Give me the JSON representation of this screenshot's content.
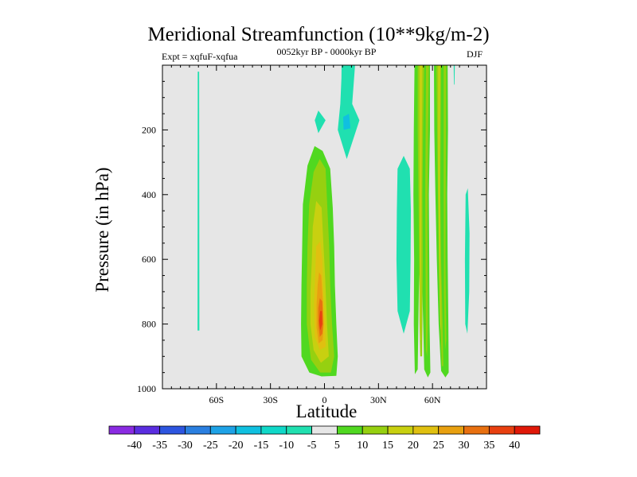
{
  "chart_data": {
    "type": "filled-contour",
    "title": "Meridional Streamfunction (10**9kg/m-2)",
    "experiment_label": "Expt = xqfuF-xqfua",
    "subtitle": "0052kyr BP - 0000kyr BP",
    "season": "DJF",
    "xlabel": "Latitude",
    "ylabel": "Pressure (in hPa)",
    "xlim": [
      -90,
      90
    ],
    "ylim": [
      1000,
      0
    ],
    "xticks": [
      {
        "value": -60,
        "label": "60S"
      },
      {
        "value": -30,
        "label": "30S"
      },
      {
        "value": 0,
        "label": "0"
      },
      {
        "value": 30,
        "label": "30N"
      },
      {
        "value": 60,
        "label": "60N"
      }
    ],
    "yticks": [
      {
        "value": 200,
        "label": "200"
      },
      {
        "value": 400,
        "label": "400"
      },
      {
        "value": 600,
        "label": "600"
      },
      {
        "value": 800,
        "label": "800"
      },
      {
        "value": 1000,
        "label": "1000"
      }
    ],
    "background_color": "#e6e6e6",
    "colorbar": {
      "labels": [
        "-40",
        "-35",
        "-30",
        "-25",
        "-20",
        "-15",
        "-10",
        "-5",
        "5",
        "10",
        "15",
        "20",
        "25",
        "30",
        "35",
        "40"
      ],
      "colors": [
        "#8a2be2",
        "#5a2de0",
        "#2d55e0",
        "#2a7fe0",
        "#1ea2e6",
        "#10c0e0",
        "#10d8c8",
        "#20e0b0",
        "#e6e6e6",
        "#50d820",
        "#96d010",
        "#c8d010",
        "#e0c010",
        "#e8a010",
        "#e87010",
        "#e84010",
        "#e01808"
      ]
    },
    "regions": [
      {
        "name": "sh-polar-neg-strip",
        "color": "#20e0b0",
        "points": [
          [
            -70.4,
            20
          ],
          [
            -69.6,
            20
          ],
          [
            -69.5,
            820
          ],
          [
            -70.5,
            820
          ]
        ]
      },
      {
        "name": "upper-trop-neg-tongue",
        "color": "#20e0b0",
        "points": [
          [
            9.5,
            0
          ],
          [
            17,
            0
          ],
          [
            15.4,
            120
          ],
          [
            19.4,
            170
          ],
          [
            12.4,
            290
          ],
          [
            7.4,
            200
          ],
          [
            8.8,
            120
          ],
          [
            9.4,
            40
          ]
        ]
      },
      {
        "name": "upper-trop-neg-blob-west",
        "color": "#20e0b0",
        "points": [
          [
            -5.4,
            170
          ],
          [
            -3.4,
            140
          ],
          [
            0.6,
            170
          ],
          [
            -3.4,
            210
          ]
        ]
      },
      {
        "name": "upper-trop-neg-core",
        "color": "#10c0e0",
        "points": [
          [
            10.4,
            160
          ],
          [
            13.6,
            150
          ],
          [
            14.4,
            195
          ],
          [
            10.6,
            200
          ]
        ]
      },
      {
        "name": "equatorial-5",
        "color": "#50d820",
        "points": [
          [
            -12.4,
            560
          ],
          [
            -12,
            430
          ],
          [
            -9.4,
            310
          ],
          [
            -5.5,
            250
          ],
          [
            -1,
            265
          ],
          [
            3.2,
            320
          ],
          [
            4.6,
            440
          ],
          [
            5.4,
            560
          ],
          [
            5.8,
            680
          ],
          [
            6.6,
            800
          ],
          [
            7.4,
            900
          ],
          [
            6.6,
            960
          ],
          [
            -1.6,
            962
          ],
          [
            -8.4,
            950
          ],
          [
            -12.8,
            900
          ],
          [
            -13,
            800
          ],
          [
            -12.8,
            680
          ]
        ]
      },
      {
        "name": "equatorial-10",
        "color": "#96d010",
        "points": [
          [
            -9.4,
            560
          ],
          [
            -8.5,
            430
          ],
          [
            -6,
            330
          ],
          [
            -2.6,
            290
          ],
          [
            0.6,
            320
          ],
          [
            1.6,
            440
          ],
          [
            2.6,
            560
          ],
          [
            3.2,
            680
          ],
          [
            4.2,
            800
          ],
          [
            5.4,
            900
          ],
          [
            3.6,
            950
          ],
          [
            -2.4,
            950
          ],
          [
            -7.5,
            910
          ],
          [
            -9.8,
            800
          ],
          [
            -9.8,
            680
          ]
        ]
      },
      {
        "name": "equatorial-15",
        "color": "#c8d010",
        "points": [
          [
            -7,
            600
          ],
          [
            -6.5,
            500
          ],
          [
            -4.6,
            420
          ],
          [
            -1.6,
            440
          ],
          [
            -0.6,
            550
          ],
          [
            0.4,
            660
          ],
          [
            1.4,
            800
          ],
          [
            2.4,
            900
          ],
          [
            -2,
            920
          ],
          [
            -6,
            880
          ],
          [
            -7.8,
            800
          ],
          [
            -7.8,
            700
          ]
        ]
      },
      {
        "name": "equatorial-20",
        "color": "#e0c010",
        "points": [
          [
            -5,
            620
          ],
          [
            -4.6,
            560
          ],
          [
            -2.4,
            545
          ],
          [
            -1.2,
            600
          ],
          [
            -0.6,
            700
          ],
          [
            0.4,
            800
          ],
          [
            0.6,
            870
          ],
          [
            -2.6,
            880
          ],
          [
            -5.4,
            840
          ],
          [
            -5.8,
            740
          ]
        ]
      },
      {
        "name": "equatorial-25",
        "color": "#e8a010",
        "points": [
          [
            -3.8,
            680
          ],
          [
            -3,
            640
          ],
          [
            -1.8,
            650
          ],
          [
            -1,
            720
          ],
          [
            -0.4,
            800
          ],
          [
            -1,
            850
          ],
          [
            -3.2,
            860
          ],
          [
            -4.4,
            810
          ],
          [
            -4.4,
            740
          ]
        ]
      },
      {
        "name": "equatorial-30",
        "color": "#e87010",
        "points": [
          [
            -2.6,
            720
          ],
          [
            -1.2,
            730
          ],
          [
            -0.8,
            800
          ],
          [
            -1.2,
            830
          ],
          [
            -2.6,
            840
          ],
          [
            -3.4,
            800
          ],
          [
            -3.4,
            750
          ]
        ]
      },
      {
        "name": "equatorial-35",
        "color": "#e84010",
        "points": [
          [
            -2.4,
            760
          ],
          [
            -1.4,
            760
          ],
          [
            -1.2,
            800
          ],
          [
            -2.4,
            820
          ],
          [
            -3,
            790
          ]
        ]
      },
      {
        "name": "nh-neg-column",
        "color": "#20e0b0",
        "points": [
          [
            40.6,
            320
          ],
          [
            44,
            280
          ],
          [
            47.4,
            320
          ],
          [
            48,
            450
          ],
          [
            47.8,
            600
          ],
          [
            47.4,
            760
          ],
          [
            44,
            830
          ],
          [
            40.6,
            760
          ],
          [
            40,
            600
          ],
          [
            40.2,
            450
          ]
        ]
      },
      {
        "name": "nh-pos-col-a-5",
        "color": "#50d820",
        "points": [
          [
            50,
            0
          ],
          [
            58.6,
            0
          ],
          [
            58.6,
            200
          ],
          [
            58,
            400
          ],
          [
            58.2,
            600
          ],
          [
            58.4,
            800
          ],
          [
            58.8,
            950
          ],
          [
            57.4,
            965
          ],
          [
            55.4,
            940
          ],
          [
            54.4,
            700
          ],
          [
            53.4,
            500
          ],
          [
            54,
            300
          ],
          [
            52.4,
            700
          ],
          [
            51.8,
            940
          ],
          [
            50.2,
            955
          ],
          [
            49.6,
            800
          ],
          [
            49.8,
            600
          ],
          [
            49.4,
            400
          ],
          [
            49.6,
            200
          ]
        ]
      },
      {
        "name": "nh-pos-col-a-10",
        "color": "#96d010",
        "points": [
          [
            51.8,
            0
          ],
          [
            55.4,
            0
          ],
          [
            54.8,
            200
          ],
          [
            54.4,
            400
          ],
          [
            54.6,
            600
          ],
          [
            54.4,
            800
          ],
          [
            54.2,
            900
          ],
          [
            53.2,
            900
          ],
          [
            52.8,
            800
          ],
          [
            52.6,
            600
          ],
          [
            52.2,
            400
          ],
          [
            51.8,
            200
          ]
        ]
      },
      {
        "name": "nh-pos-col-a-10b",
        "color": "#96d010",
        "points": [
          [
            56.4,
            0
          ],
          [
            58,
            0
          ],
          [
            57.6,
            200
          ],
          [
            57.2,
            500
          ],
          [
            57.4,
            800
          ],
          [
            57,
            900
          ],
          [
            56.4,
            880
          ],
          [
            56.2,
            700
          ],
          [
            56,
            400
          ],
          [
            56.2,
            200
          ]
        ]
      },
      {
        "name": "nh-pos-col-a-15",
        "color": "#c8d010",
        "points": [
          [
            52.8,
            0
          ],
          [
            54.4,
            0
          ],
          [
            54,
            300
          ],
          [
            53.8,
            600
          ],
          [
            53.8,
            850
          ],
          [
            53.4,
            850
          ],
          [
            53,
            600
          ],
          [
            52.8,
            300
          ]
        ]
      },
      {
        "name": "nh-pos-col-b-5",
        "color": "#50d820",
        "points": [
          [
            60.8,
            0
          ],
          [
            68.4,
            0
          ],
          [
            68.6,
            200
          ],
          [
            68.2,
            400
          ],
          [
            68.4,
            600
          ],
          [
            68.8,
            800
          ],
          [
            69,
            950
          ],
          [
            67.2,
            965
          ],
          [
            64.8,
            945
          ],
          [
            63.4,
            800
          ],
          [
            62.4,
            600
          ],
          [
            61.6,
            400
          ],
          [
            61,
            200
          ]
        ]
      },
      {
        "name": "nh-pos-col-b-10",
        "color": "#96d010",
        "points": [
          [
            62.2,
            0
          ],
          [
            64.8,
            0
          ],
          [
            64.6,
            200
          ],
          [
            64.4,
            400
          ],
          [
            64.8,
            600
          ],
          [
            65.6,
            800
          ],
          [
            66,
            930
          ],
          [
            65.2,
            930
          ],
          [
            64.4,
            800
          ],
          [
            63.6,
            600
          ],
          [
            63,
            400
          ],
          [
            62.6,
            200
          ]
        ]
      },
      {
        "name": "nh-pos-col-b-10b",
        "color": "#96d010",
        "points": [
          [
            66.2,
            0
          ],
          [
            67.6,
            0
          ],
          [
            67.4,
            300
          ],
          [
            67.2,
            600
          ],
          [
            67.6,
            850
          ],
          [
            67,
            880
          ],
          [
            66.4,
            700
          ],
          [
            66.2,
            400
          ]
        ]
      },
      {
        "name": "nh-pos-col-b-15",
        "color": "#c8d010",
        "points": [
          [
            63.2,
            0
          ],
          [
            64.2,
            0
          ],
          [
            64,
            300
          ],
          [
            64.2,
            600
          ],
          [
            64.8,
            800
          ],
          [
            64.4,
            820
          ],
          [
            63.6,
            600
          ],
          [
            63.2,
            300
          ]
        ]
      },
      {
        "name": "nh-thin-neg-top",
        "color": "#20e0b0",
        "points": [
          [
            71.8,
            0
          ],
          [
            72.4,
            0
          ],
          [
            72.2,
            60
          ],
          [
            71.9,
            60
          ]
        ]
      },
      {
        "name": "nh-neg-strip-east",
        "color": "#20e0b0",
        "points": [
          [
            78.4,
            400
          ],
          [
            79.6,
            380
          ],
          [
            80.6,
            520
          ],
          [
            80.4,
            700
          ],
          [
            79.4,
            830
          ],
          [
            78.2,
            800
          ],
          [
            78,
            600
          ]
        ]
      }
    ]
  }
}
